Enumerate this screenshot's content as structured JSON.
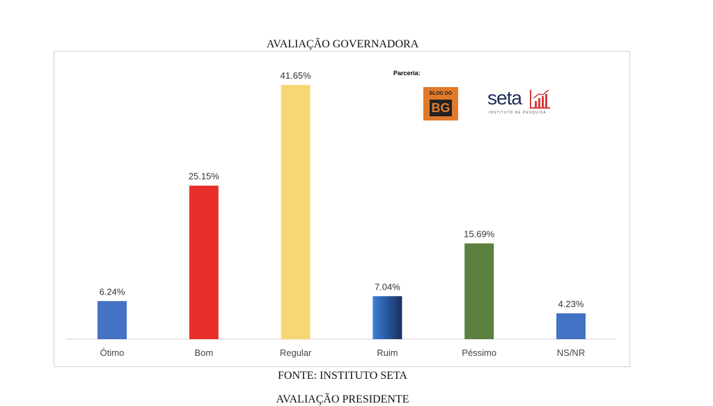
{
  "document": {
    "title": "AVALIAÇÃO GOVERNADORA",
    "source": "FONTE: INSTITUTO SETA",
    "next_heading": "AVALIAÇÃO PRESIDENTE"
  },
  "partners": {
    "label": "Parceria:",
    "blog_logo_text": "BLOG DO BG",
    "seta_logo_text": "seta",
    "seta_logo_subtitle": "INSTITUTO DE PESQUISA"
  },
  "chart_data": {
    "type": "bar",
    "title": "AVALIAÇÃO GOVERNADORA",
    "categories": [
      "Ótimo",
      "Bom",
      "Regular",
      "Ruim",
      "Péssimo",
      "NS/NR"
    ],
    "values": [
      6.24,
      25.15,
      41.65,
      7.04,
      15.69,
      4.23
    ],
    "value_labels": [
      "6.24%",
      "25.15%",
      "41.65%",
      "7.04%",
      "15.69%",
      "4.23%"
    ],
    "colors": [
      "#4472C4",
      "#E8302A",
      "#F7D774",
      "#2F6BC4",
      "#5B803F",
      "#4472C4"
    ],
    "xlabel": "",
    "ylabel": "",
    "ylim": [
      0,
      45
    ],
    "grid": false
  }
}
